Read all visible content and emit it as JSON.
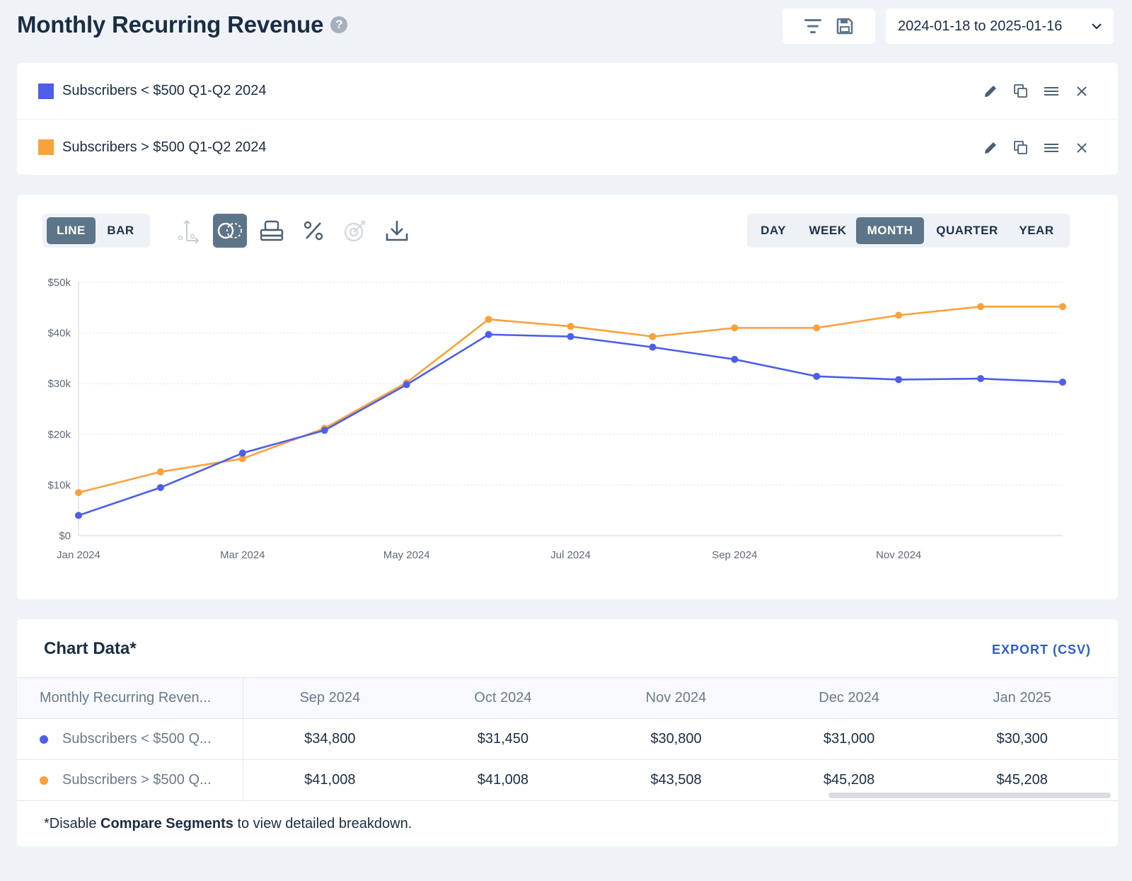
{
  "header": {
    "title": "Monthly Recurring Revenue",
    "help_glyph": "?",
    "date_range": "2024-01-18 to 2025-01-16"
  },
  "segments": [
    {
      "label": "Subscribers < $500 Q1-Q2 2024",
      "color": "#4d5ee8"
    },
    {
      "label": "Subscribers > $500 Q1-Q2 2024",
      "color": "#f9a13b"
    }
  ],
  "chart_toolbar": {
    "type_options": [
      {
        "label": "LINE",
        "active": true
      },
      {
        "label": "BAR",
        "active": false
      }
    ],
    "periods": [
      {
        "label": "DAY",
        "active": false
      },
      {
        "label": "WEEK",
        "active": false
      },
      {
        "label": "MONTH",
        "active": true
      },
      {
        "label": "QUARTER",
        "active": false
      },
      {
        "label": "YEAR",
        "active": false
      }
    ]
  },
  "chart_data": {
    "type": "line",
    "x": [
      "Jan 2024",
      "Feb 2024",
      "Mar 2024",
      "Apr 2024",
      "May 2024",
      "Jun 2024",
      "Jul 2024",
      "Aug 2024",
      "Sep 2024",
      "Oct 2024",
      "Nov 2024",
      "Dec 2024",
      "Jan 2025"
    ],
    "x_tick_labels": [
      "Jan 2024",
      "Mar 2024",
      "May 2024",
      "Jul 2024",
      "Sep 2024",
      "Nov 2024"
    ],
    "y_tick_labels": [
      "$0",
      "$10k",
      "$20k",
      "$30k",
      "$40k",
      "$50k"
    ],
    "ylim": [
      0,
      50000
    ],
    "grid": true,
    "series": [
      {
        "name": "Subscribers < $500 Q1-Q2 2024",
        "color": "#4d5ee8",
        "values": [
          4000,
          9500,
          16300,
          20800,
          29800,
          39700,
          39300,
          37200,
          34800,
          31450,
          30800,
          31000,
          30300
        ]
      },
      {
        "name": "Subscribers > $500 Q1-Q2 2024",
        "color": "#f9a13b",
        "values": [
          8500,
          12600,
          15200,
          21200,
          30200,
          42700,
          41300,
          39300,
          41008,
          41008,
          43508,
          45208,
          45208
        ]
      }
    ]
  },
  "data_table": {
    "title": "Chart Data*",
    "export_label": "EXPORT (CSV)",
    "first_col_header": "Monthly Recurring Reven...",
    "columns": [
      "Sep 2024",
      "Oct 2024",
      "Nov 2024",
      "Dec 2024",
      "Jan 2025"
    ],
    "rows": [
      {
        "label": "Subscribers < $500 Q...",
        "color": "#4d5ee8",
        "values": [
          "$34,800",
          "$31,450",
          "$30,800",
          "$31,000",
          "$30,300"
        ]
      },
      {
        "label": "Subscribers > $500 Q...",
        "color": "#f9a13b",
        "values": [
          "$41,008",
          "$41,008",
          "$43,508",
          "$45,208",
          "$45,208"
        ]
      }
    ],
    "footnote_prefix": "*Disable ",
    "footnote_bold": "Compare Segments",
    "footnote_suffix": " to view detailed breakdown."
  }
}
